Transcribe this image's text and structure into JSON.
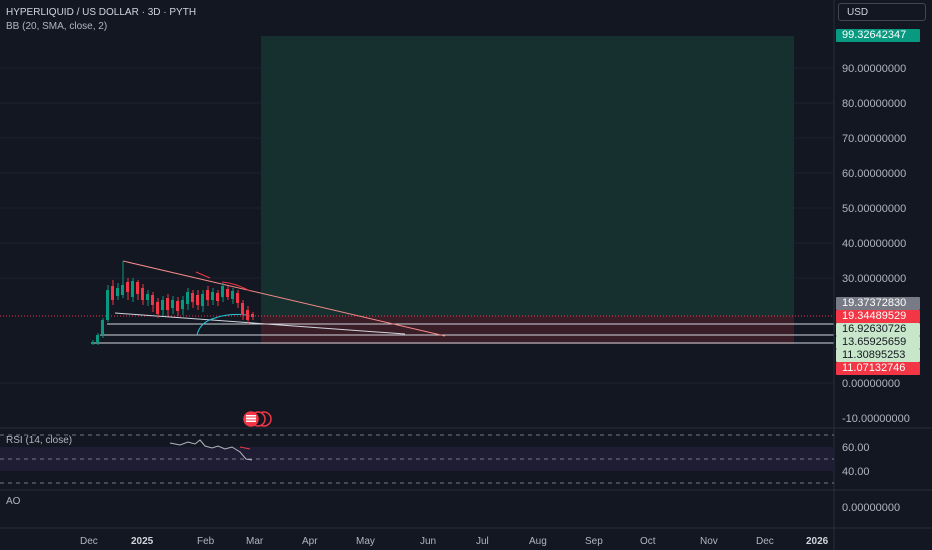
{
  "legend": {
    "symbol": "HYPERLIQUID / US DOLLAR · 3D · PYTH",
    "indicator": "BB (20, SMA, close, 2)"
  },
  "currency_selector": "USD",
  "price_axis": [
    "90.00000000",
    "80.00000000",
    "70.00000000",
    "60.00000000",
    "50.00000000",
    "40.00000000",
    "30.00000000",
    "0.00000000",
    "-10.00000000"
  ],
  "price_badges": [
    {
      "value": "99.32642347",
      "bg": "#089981",
      "fg": "#ffffff"
    },
    {
      "value": "19.37372830",
      "bg": "#787b86",
      "fg": "#ffffff"
    },
    {
      "value": "19.34489529",
      "bg": "#f23645",
      "fg": "#ffffff"
    },
    {
      "value": "16.92630726",
      "bg": "#c8e6c9",
      "fg": "#131722"
    },
    {
      "value": "13.65925659",
      "bg": "#c8e6c9",
      "fg": "#131722"
    },
    {
      "value": "11.30895253",
      "bg": "#c8e6c9",
      "fg": "#131722"
    },
    {
      "value": "11.07132746",
      "bg": "#f23645",
      "fg": "#ffffff"
    }
  ],
  "rsi": {
    "label": "RSI (14, close)",
    "axis": [
      "60.00",
      "40.00"
    ]
  },
  "ao": {
    "label": "AO",
    "axis": "0.00000000"
  },
  "time_axis": [
    "Dec",
    "2025",
    "Feb",
    "Mar",
    "Apr",
    "May",
    "Jun",
    "Jul",
    "Aug",
    "Sep",
    "Oct",
    "Nov",
    "Dec",
    "2026"
  ],
  "colors": {
    "bg": "#131722",
    "up": "#089981",
    "down": "#f23645",
    "target_zone": "#16302f",
    "stop_zone": "#3a1e27"
  }
}
